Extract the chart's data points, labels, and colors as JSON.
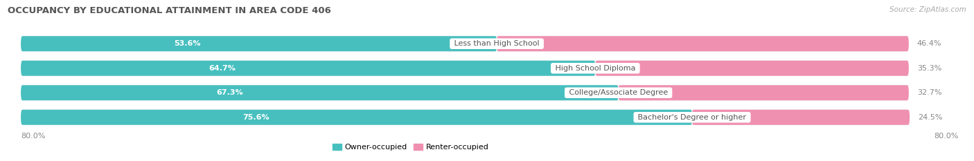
{
  "title": "OCCUPANCY BY EDUCATIONAL ATTAINMENT IN AREA CODE 406",
  "source": "Source: ZipAtlas.com",
  "categories": [
    "Less than High School",
    "High School Diploma",
    "College/Associate Degree",
    "Bachelor's Degree or higher"
  ],
  "owner_pct": [
    53.6,
    64.7,
    67.3,
    75.6
  ],
  "renter_pct": [
    46.4,
    35.3,
    32.7,
    24.5
  ],
  "owner_color": "#48BFBF",
  "renter_color": "#F090B0",
  "bg_row_color": "#EFEFEF",
  "bar_track_color": "#E0E0E0",
  "title_color": "#555555",
  "axis_label_color": "#888888",
  "value_color_owner": "#FFFFFF",
  "value_color_renter": "#888888",
  "category_text_color": "#555555",
  "axis_label_left": "80.0%",
  "axis_label_right": "80.0%",
  "x_max": 80.0,
  "title_fontsize": 9.5,
  "bar_label_fontsize": 8,
  "category_fontsize": 8,
  "legend_fontsize": 8,
  "source_fontsize": 7.5
}
